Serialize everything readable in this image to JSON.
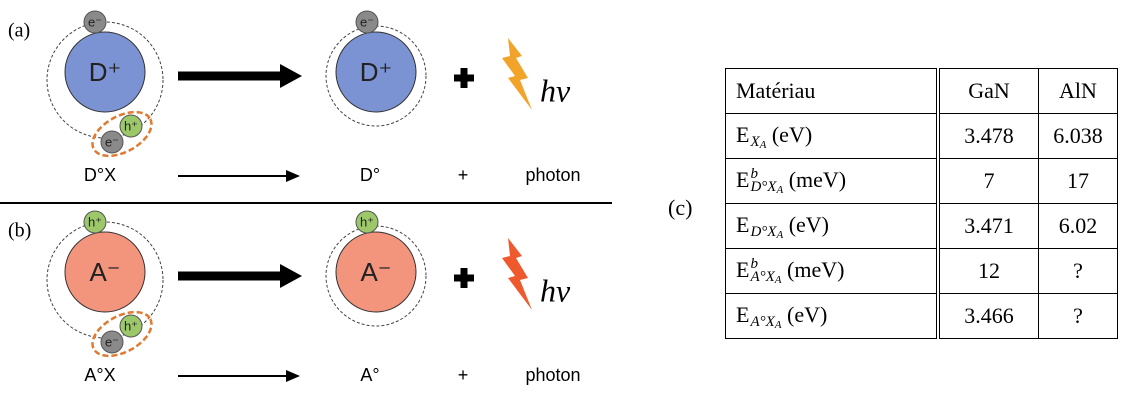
{
  "panels": [
    {
      "label": "(a)",
      "ion": "D⁺",
      "ion_color": "#7b93d3",
      "bound": "e⁻",
      "bound_color": "#8a8a8a",
      "pair_electron": "e⁻",
      "pair_hole": "h⁺",
      "ion_after": "D⁺",
      "photon_symbol": "hν",
      "bolt_color": "#f2a42a",
      "initial": "D°X",
      "final": "D°",
      "plus": "+",
      "photon": "photon"
    },
    {
      "label": "(b)",
      "ion": "A⁻",
      "ion_color": "#f3957c",
      "bound": "h⁺",
      "bound_color": "#9cc86a",
      "pair_electron": "e⁻",
      "pair_hole": "h⁺",
      "ion_after": "A⁻",
      "photon_symbol": "hν",
      "bolt_color": "#ee5a2e",
      "initial": "A°X",
      "final": "A°",
      "plus": "+",
      "photon": "photon"
    }
  ],
  "table": {
    "label": "(c)",
    "header": [
      "Matériau",
      "GaN",
      "AlN"
    ],
    "rows": [
      {
        "symbol": "E",
        "sub": "X",
        "sub2": "A",
        "unit": "(eV)",
        "values": [
          "3.478",
          "6.038"
        ]
      },
      {
        "symbol": "E",
        "sup": "b",
        "sub": "D°X",
        "sub2": "A",
        "unit": "(meV)",
        "values": [
          "7",
          "17"
        ]
      },
      {
        "symbol": "E",
        "sub": "D°X",
        "sub2": "A",
        "unit": "(eV)",
        "values": [
          "3.471",
          "6.02"
        ]
      },
      {
        "symbol": "E",
        "sup": "b",
        "sub": "A°X",
        "sub2": "A",
        "unit": "(meV)",
        "values": [
          "12",
          "?"
        ]
      },
      {
        "symbol": "E",
        "sub": "A°X",
        "sub2": "A",
        "unit": "(eV)",
        "values": [
          "3.466",
          "?"
        ]
      }
    ]
  }
}
